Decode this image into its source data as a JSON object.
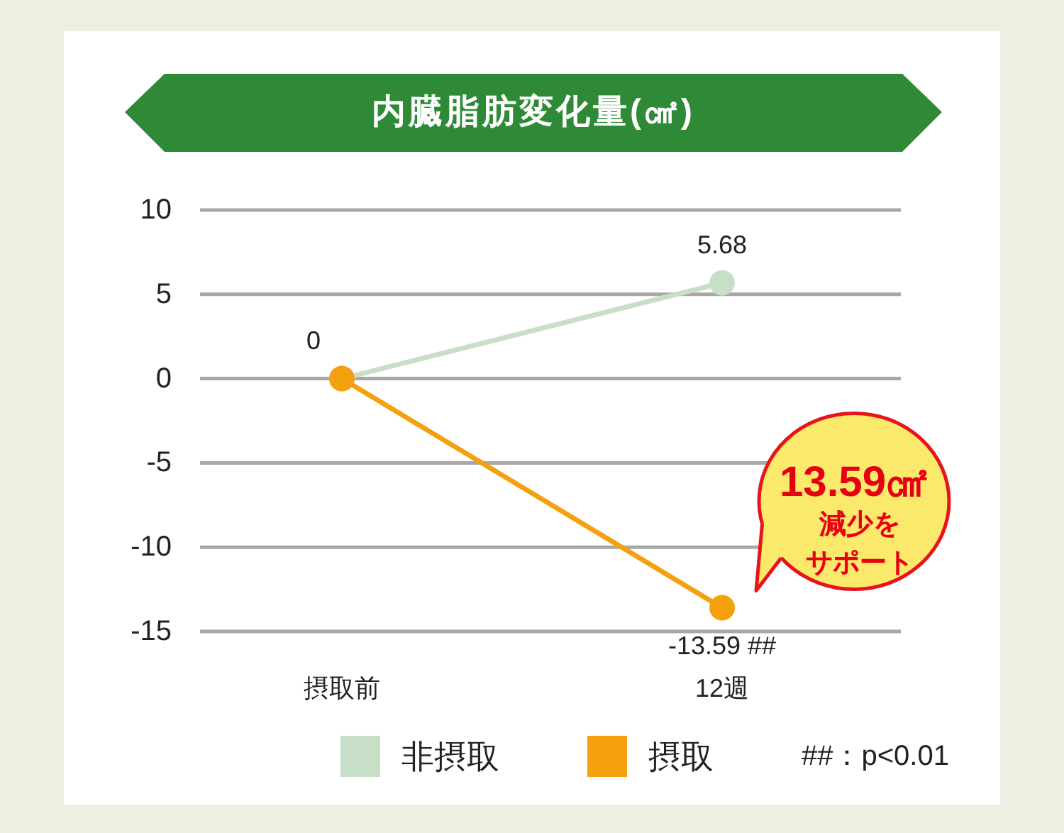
{
  "chart_data": {
    "type": "line",
    "title": "内臓脂肪変化量(㎠)",
    "categories": [
      "摂取前",
      "12週"
    ],
    "series": [
      {
        "name": "非摂取",
        "color": "#c6dfc6",
        "values": [
          0,
          5.68
        ],
        "value_labels": [
          null,
          "5.68"
        ]
      },
      {
        "name": "摂取",
        "color": "#f5a00f",
        "values": [
          0,
          -13.59
        ],
        "value_labels": [
          "0",
          "-13.59 ##"
        ]
      }
    ],
    "ylim": [
      -15,
      10
    ],
    "yticks": [
      -15,
      -10,
      -5,
      0,
      5,
      10
    ],
    "grid": "y",
    "legend": "bottom",
    "marker": "circle",
    "annotations": [
      "##：p<0.01",
      {
        "text": "13.59㎠",
        "x": "12週",
        "y": -13.59
      },
      "減少を",
      "サポート"
    ]
  }
}
